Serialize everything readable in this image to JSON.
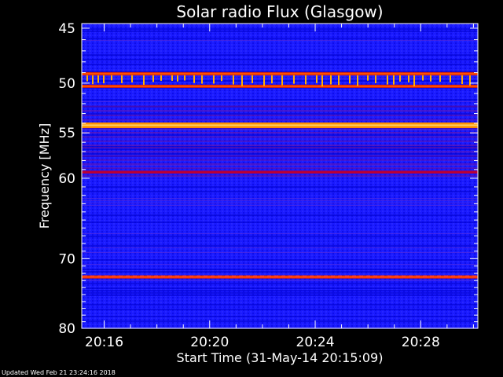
{
  "chart_data": {
    "type": "heatmap",
    "title": "Solar radio Flux (Glasgow)",
    "xlabel": "Start Time (31-May-14 20:15:09)",
    "ylabel": "Frequency [MHz]",
    "x_ticks": [
      "20:16",
      "20:20",
      "20:24",
      "20:28"
    ],
    "y_ticks": [
      45,
      50,
      55,
      60,
      70,
      80
    ],
    "y_scale": "log",
    "ylim": [
      80,
      44.6
    ],
    "xlim": [
      "20:15:09",
      "20:30:10"
    ],
    "colormap": [
      "#0000c8",
      "#2020ff",
      "#8000a0",
      "#c00000",
      "#ff2000",
      "#ffa000",
      "#ffe080"
    ],
    "bands": [
      {
        "freq": 49.1,
        "intensity": "high"
      },
      {
        "freq": 50.3,
        "intensity": "high"
      },
      {
        "freq": 54.2,
        "intensity": "very-high"
      },
      {
        "freq": 59.3,
        "intensity": "medium"
      },
      {
        "freq": 72.5,
        "intensity": "high"
      }
    ]
  },
  "footer": {
    "updated": "Updated Wed Feb 21 23:24:16 2018"
  }
}
